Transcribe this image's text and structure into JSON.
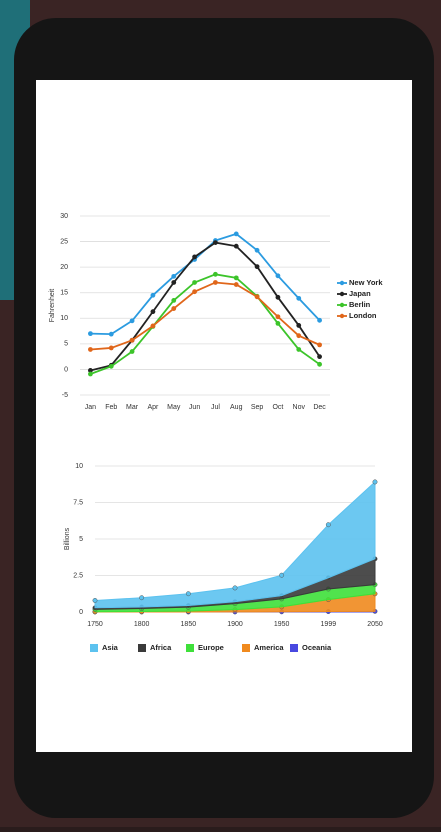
{
  "chart_data": [
    {
      "type": "line",
      "y_label": "Fahrenheit",
      "categories": [
        "Jan",
        "Feb",
        "Mar",
        "Apr",
        "May",
        "Jun",
        "Jul",
        "Aug",
        "Sep",
        "Oct",
        "Nov",
        "Dec"
      ],
      "ylim": [
        -5,
        30
      ],
      "yticks": [
        -5,
        0,
        5,
        10,
        15,
        20,
        25,
        30
      ],
      "grid": true,
      "series": [
        {
          "name": "New York",
          "color": "#2b9be0",
          "values": [
            7.0,
            6.9,
            9.5,
            14.5,
            18.2,
            21.5,
            25.2,
            26.5,
            23.3,
            18.3,
            13.9,
            9.6
          ]
        },
        {
          "name": "Japan",
          "color": "#222222",
          "values": [
            -0.2,
            0.8,
            5.7,
            11.3,
            17.0,
            22.0,
            24.8,
            24.1,
            20.1,
            14.1,
            8.6,
            2.5
          ]
        },
        {
          "name": "Berlin",
          "color": "#3cc42a",
          "values": [
            -0.9,
            0.6,
            3.5,
            8.4,
            13.5,
            17.0,
            18.6,
            17.9,
            14.3,
            9.0,
            3.9,
            1.0
          ]
        },
        {
          "name": "London",
          "color": "#e0661a",
          "values": [
            3.9,
            4.2,
            5.7,
            8.5,
            11.9,
            15.2,
            17.0,
            16.6,
            14.2,
            10.3,
            6.6,
            4.8
          ]
        }
      ]
    },
    {
      "type": "stacked-area",
      "y_label": "Billions",
      "categories": [
        "1750",
        "1800",
        "1850",
        "1900",
        "1950",
        "1999",
        "2050"
      ],
      "ylim": [
        0,
        10
      ],
      "yticks": [
        0,
        2.5,
        5,
        7.5,
        10
      ],
      "grid": true,
      "series": [
        {
          "name": "Asia",
          "color": "#5cc2ef",
          "values": [
            0.502,
            0.635,
            0.809,
            0.947,
            1.402,
            3.634,
            5.268
          ]
        },
        {
          "name": "Africa",
          "color": "#3a3a3a",
          "values": [
            0.106,
            0.107,
            0.111,
            0.133,
            0.221,
            0.767,
            1.766
          ]
        },
        {
          "name": "Europe",
          "color": "#3ee03a",
          "values": [
            0.163,
            0.203,
            0.276,
            0.408,
            0.547,
            0.729,
            0.628
          ]
        },
        {
          "name": "America",
          "color": "#f08a1e",
          "values": [
            0.018,
            0.031,
            0.054,
            0.156,
            0.339,
            0.818,
            1.201
          ]
        },
        {
          "name": "Oceania",
          "color": "#4848e0",
          "values": [
            0.002,
            0.002,
            0.002,
            0.006,
            0.013,
            0.03,
            0.046
          ]
        }
      ]
    }
  ]
}
